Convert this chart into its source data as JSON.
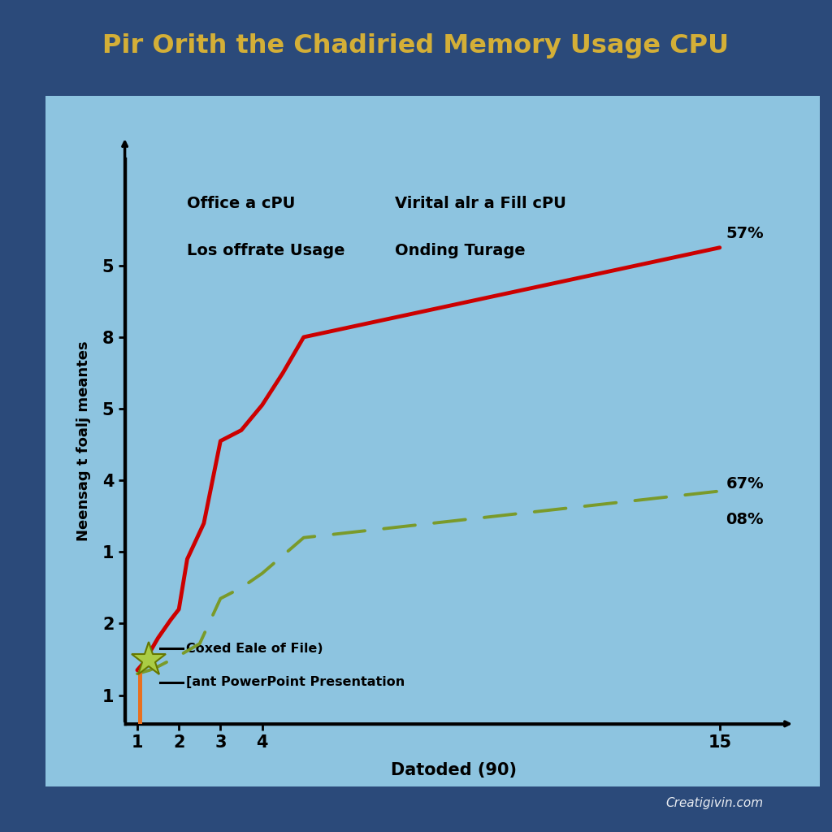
{
  "title": "Pir Orith the Chadiried Memory Usage CPU",
  "title_color": "#D4AF37",
  "background_outer": "#2B4A7A",
  "background_inner": "#8DC4E0",
  "xlabel": "Datoded (90)",
  "ylabel": "Neensag t foalj meantes",
  "ytick_positions": [
    1,
    2,
    3,
    4,
    5,
    6,
    7
  ],
  "ytick_labels": [
    "1",
    "2",
    "1",
    "4",
    "5",
    "8",
    "5"
  ],
  "xticks": [
    1,
    2,
    3,
    4,
    15
  ],
  "annotation_left1": "Office a cPU",
  "annotation_left2": "Los offrate Usage",
  "annotation_right1": "Virital alr a Fill cPU",
  "annotation_right2": "Onding Turage",
  "legend_label1": "Coxed Eale of File)",
  "legend_label2": "[ant PowerPoint Presentation",
  "watermark": "Creatigivin.com",
  "red_line_x": [
    1,
    1.15,
    1.3,
    1.5,
    1.8,
    2.0,
    2.2,
    2.4,
    2.6,
    3.0,
    3.5,
    4.0,
    4.5,
    5.0,
    15
  ],
  "red_line_y": [
    1.35,
    1.45,
    1.6,
    1.8,
    2.05,
    2.2,
    2.9,
    3.15,
    3.4,
    4.55,
    4.7,
    5.05,
    5.5,
    6.0,
    7.25
  ],
  "green_line_x": [
    1,
    1.3,
    1.5,
    2.0,
    2.5,
    3.0,
    3.5,
    4.0,
    4.5,
    5.0,
    15
  ],
  "green_line_y": [
    1.3,
    1.35,
    1.4,
    1.55,
    1.72,
    2.35,
    2.5,
    2.7,
    2.95,
    3.2,
    3.85
  ],
  "red_color": "#CC0000",
  "green_color": "#7A9A2A",
  "orange_color": "#E87020",
  "label_57": "57%",
  "label_67": "67%",
  "label_08": "08%",
  "ylim_min": 0.6,
  "ylim_max": 8.5,
  "xlim_min": 0.7,
  "xlim_max": 16.5
}
